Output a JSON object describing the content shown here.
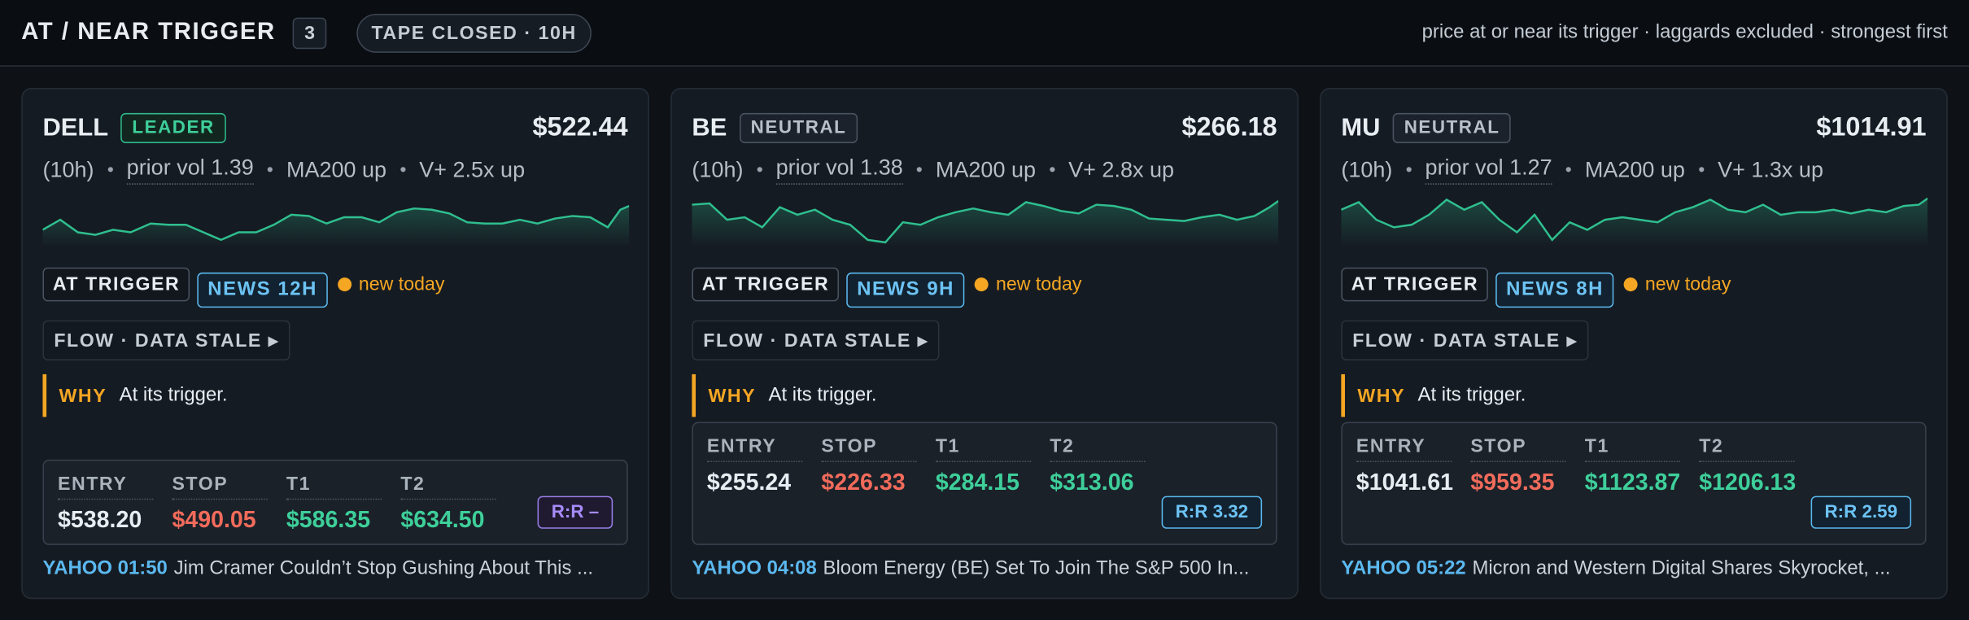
{
  "header": {
    "title": "AT / NEAR TRIGGER",
    "count": 3,
    "status": "TAPE CLOSED · 10H",
    "note": "price at or near its trigger · laggards excluded · strongest first"
  },
  "cards": [
    {
      "ticker": "DELL",
      "tag": "LEADER",
      "price": "$522.44",
      "meta": [
        "(10h)",
        "prior vol 1.39",
        "MA200 up",
        "V+ 2.5x up"
      ],
      "badges": [
        "AT TRIGGER",
        "NEWS 12H"
      ],
      "new": "new today",
      "flow": "FLOW · DATA STALE ▸",
      "why_label": "WHY",
      "why": "At its trigger.",
      "levels": {
        "labels": [
          "ENTRY",
          "STOP",
          "T1",
          "T2"
        ],
        "values": [
          "$538.20",
          "$490.05",
          "$586.35",
          "$634.50"
        ]
      },
      "rr": "R:R –",
      "news_source": "YAHOO 01:50",
      "news_headline": "Jim Cramer Couldn’t Stop Gushing About This ..."
    },
    {
      "ticker": "BE",
      "tag": "NEUTRAL",
      "price": "$266.18",
      "meta": [
        "(10h)",
        "prior vol 1.38",
        "MA200 up",
        "V+ 2.8x up"
      ],
      "badges": [
        "AT TRIGGER",
        "NEWS 9H"
      ],
      "new": "new today",
      "flow": "FLOW · DATA STALE ▸",
      "why_label": "WHY",
      "why": "At its trigger.",
      "levels": {
        "labels": [
          "ENTRY",
          "STOP",
          "T1",
          "T2"
        ],
        "values": [
          "$255.24",
          "$226.33",
          "$284.15",
          "$313.06"
        ]
      },
      "rr": "R:R 3.32",
      "news_source": "YAHOO 04:08",
      "news_headline": "Bloom Energy (BE) Set To Join The S&P 500 In..."
    },
    {
      "ticker": "MU",
      "tag": "NEUTRAL",
      "price": "$1014.91",
      "meta": [
        "(10h)",
        "prior vol 1.27",
        "MA200 up",
        "V+ 1.3x up"
      ],
      "badges": [
        "AT TRIGGER",
        "NEWS 8H"
      ],
      "new": "new today",
      "flow": "FLOW · DATA STALE ▸",
      "why_label": "WHY",
      "why": "At its trigger.",
      "levels": {
        "labels": [
          "ENTRY",
          "STOP",
          "T1",
          "T2"
        ],
        "values": [
          "$1041.61",
          "$959.35",
          "$1123.87",
          "$1206.13"
        ]
      },
      "rr": "R:R 2.59",
      "news_source": "YAHOO 05:22",
      "news_headline": "Micron and Western Digital Shares Skyrocket, ..."
    }
  ]
}
